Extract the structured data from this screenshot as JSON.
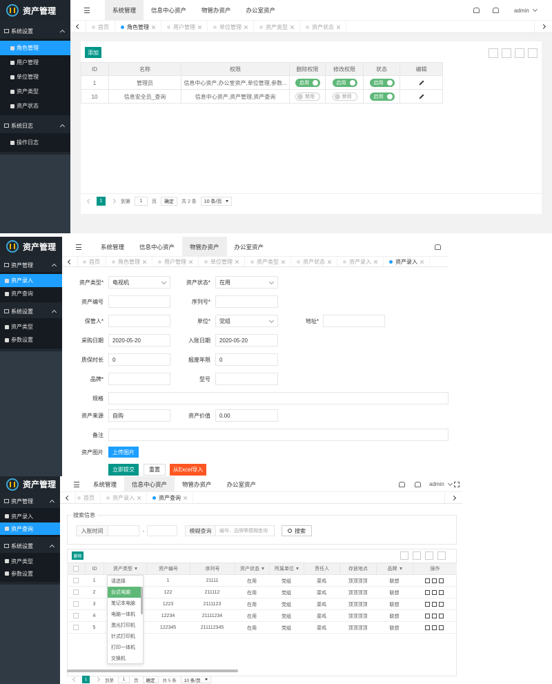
{
  "screens": [
    {
      "brand": "资产管理",
      "menu": [
        {
          "title": "系统设置",
          "items": [
            "角色管理",
            "用户管理",
            "单位管理",
            "资产类型",
            "资产状态"
          ]
        },
        {
          "title": "系统日志",
          "items": [
            "操作日志"
          ]
        }
      ],
      "top_tabs": [
        "系统管理",
        "信息中心资产",
        "物管办资产",
        "办公室资产"
      ],
      "user": "admin",
      "page_tabs": [
        "首页",
        "角色管理",
        "用户管理",
        "单位管理",
        "资产类型",
        "资产状态"
      ]
    },
    {
      "brand": "资产管理",
      "menu": [
        {
          "title": "资产管理",
          "items": [
            "资产录入",
            "资产查询"
          ]
        },
        {
          "title": "系统设置",
          "items": [
            "资产类型",
            "参数设置"
          ]
        }
      ],
      "top_tabs": [
        "系统管理",
        "信息中心资产",
        "物管办资产",
        "办公室资产"
      ],
      "page_tabs": [
        "首页",
        "角色管理",
        "用户管理",
        "单位管理",
        "资产类型",
        "资产状态",
        "资产录入",
        "资产录入"
      ]
    },
    {
      "brand": "资产管理",
      "menu": [
        {
          "title": "资产管理",
          "items": [
            "资产录入",
            "资产查询"
          ]
        },
        {
          "title": "系统设置",
          "items": [
            "资产类型",
            "参数设置"
          ]
        }
      ],
      "top_tabs": [
        "系统管理",
        "信息中心资产",
        "物管办资产",
        "办公室资产"
      ],
      "user": "admin",
      "page_tabs": [
        "首页",
        "资产录入",
        "资产查询"
      ]
    }
  ],
  "roles": {
    "add": "添加",
    "headers": [
      "ID",
      "名称",
      "权限",
      "删除权限",
      "修改权限",
      "状态",
      "编辑"
    ],
    "rows": [
      {
        "id": "1",
        "name": "管理员",
        "permissions": "信息中心资产,办公室资产,单位管理,参数...",
        "delete": {
          "label": "启用",
          "on": true
        },
        "modify": {
          "label": "启用",
          "on": true
        },
        "status": {
          "label": "启用",
          "on": true
        }
      },
      {
        "id": "10",
        "name": "信息安全员_查询",
        "permissions": "信息中心资产,资产管理,资产查询",
        "delete": {
          "label": "禁用",
          "on": false
        },
        "modify": {
          "label": "禁用",
          "on": false
        },
        "status": {
          "label": "启用",
          "on": true
        }
      }
    ],
    "pagination": {
      "current": "1",
      "goto": "到第",
      "input": "1",
      "unit": "页",
      "confirm": "确定",
      "total": "共 2 条",
      "per_page": "10 条/页"
    }
  },
  "asset_form": {
    "fields": [
      {
        "label": "资产类型*",
        "value": "电视机"
      },
      {
        "label": "资产状态*",
        "value": "在用"
      },
      {
        "label": "资产编号"
      },
      {
        "label": "序列号*"
      },
      {
        "label": "保管人*"
      },
      {
        "label": "单位*",
        "value": "党组"
      },
      {
        "label": "地址*"
      },
      {
        "label": "采购日期",
        "value": "2020-05-20"
      },
      {
        "label": "入账日期",
        "value": "2020-05-20"
      },
      {
        "label": "质保时长",
        "value": "0"
      },
      {
        "label": "报废年限",
        "value": "0"
      },
      {
        "label": "品牌*"
      },
      {
        "label": "型号"
      },
      {
        "label": "规格"
      },
      {
        "label": "资产来源",
        "value": "自购"
      },
      {
        "label": "资产价值",
        "value": "0.00"
      },
      {
        "label": "备注"
      }
    ],
    "image_label": "资产图片",
    "upload": "上传图片",
    "buttons": [
      "立即提交",
      "重置",
      "从Excel导入"
    ]
  },
  "asset_query": {
    "search_title": "搜索信息",
    "date_label": "入账时间",
    "dash": "-",
    "fuzzy_label": "模糊查询",
    "fuzzy_placeholder": "编号、品牌等模糊查询",
    "search_button": "搜索",
    "delete": "删除",
    "headers": [
      "ID",
      "资产类型",
      "资产编号",
      "序列号",
      "资产状态",
      "所属单位",
      "责任人",
      "存放地点",
      "品牌",
      "操作"
    ],
    "rows": [
      {
        "id": "1",
        "code": "1",
        "serial": "21111",
        "status": "在用",
        "unit": "党组",
        "person": "菜鸡",
        "location": "顶顶顶顶",
        "brand": "联想"
      },
      {
        "id": "2",
        "code": "122",
        "serial": "211112",
        "status": "在用",
        "unit": "党组",
        "person": "菜鸡",
        "location": "顶顶顶顶",
        "brand": "联想"
      },
      {
        "id": "3",
        "code": "1223",
        "serial": "2111123",
        "status": "在用",
        "unit": "党组",
        "person": "菜鸡",
        "location": "顶顶顶顶",
        "brand": "联想"
      },
      {
        "id": "4",
        "code": "12234",
        "serial": "21111234",
        "status": "在用",
        "unit": "党组",
        "person": "菜鸡",
        "location": "顶顶顶顶",
        "brand": "联想"
      },
      {
        "id": "5",
        "code": "122345",
        "serial": "211112345",
        "status": "在用",
        "unit": "党组",
        "person": "菜鸡",
        "location": "顶顶顶顶",
        "brand": "联想"
      }
    ],
    "type_options": [
      "请选择",
      "台式电脑",
      "笔记本电脑",
      "电脑一体机",
      "激光打印机",
      "针式打印机",
      "打印一体机",
      "交换机"
    ],
    "pagination": {
      "current": "1",
      "goto": "到第",
      "input": "1",
      "unit": "页",
      "confirm": "确定",
      "total": "共 5 条",
      "per_page": "10 条/页"
    }
  }
}
